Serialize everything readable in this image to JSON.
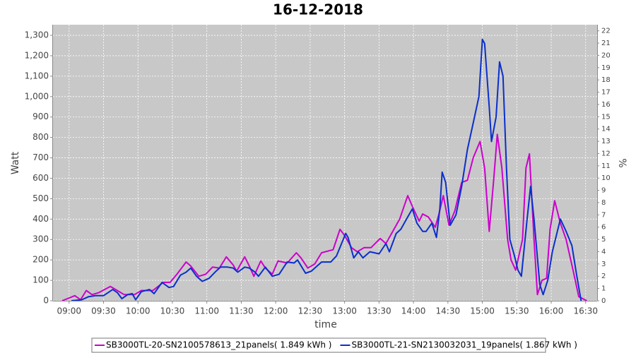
{
  "chart_data": {
    "type": "line",
    "title": "16-12-2018",
    "x_label": "time",
    "y_label": "Watt",
    "y2_label": "%",
    "xlim": [
      "08:46",
      "16:40"
    ],
    "xticks": [
      "09:00",
      "09:30",
      "10:00",
      "10:30",
      "11:00",
      "11:30",
      "12:00",
      "12:30",
      "13:00",
      "13:30",
      "14:00",
      "14:30",
      "15:00",
      "15:30",
      "16:00",
      "16:30"
    ],
    "ylim": [
      0,
      1352
    ],
    "yticks": [
      0,
      100,
      200,
      300,
      400,
      500,
      600,
      700,
      800,
      900,
      {
        "value": 1000,
        "label": "1,000"
      },
      {
        "value": 1100,
        "label": "1,100"
      },
      {
        "value": 1200,
        "label": "1,200"
      },
      {
        "value": 1300,
        "label": "1,300"
      }
    ],
    "y2lim": [
      0,
      22.5
    ],
    "y2ticks": [
      0,
      1,
      2,
      3,
      4,
      5,
      6,
      7,
      8,
      9,
      10,
      11,
      12,
      13,
      14,
      15,
      16,
      17,
      18,
      19,
      20,
      21,
      22
    ],
    "grid": true,
    "legend": "bottom",
    "series": [
      {
        "name": "SB3000TL-20-SN2100578613_21panels( 1.849 kWh )",
        "color": "#cc00cc",
        "x": [
          "08:54",
          "09:05",
          "09:10",
          "09:15",
          "09:20",
          "09:26",
          "09:36",
          "09:42",
          "09:48",
          "09:57",
          "10:03",
          "10:13",
          "10:22",
          "10:28",
          "10:34",
          "10:42",
          "10:46",
          "10:53",
          "10:59",
          "11:05",
          "11:11",
          "11:17",
          "11:23",
          "11:26",
          "11:33",
          "11:37",
          "11:41",
          "11:47",
          "11:51",
          "11:57",
          "12:02",
          "12:10",
          "12:18",
          "12:22",
          "12:28",
          "12:34",
          "12:40",
          "12:50",
          "12:56",
          "13:00",
          "13:06",
          "13:11",
          "13:17",
          "13:23",
          "13:31",
          "13:36",
          "13:42",
          "13:48",
          "13:55",
          "14:00",
          "14:05",
          "14:08",
          "14:13",
          "14:19",
          "14:22",
          "14:26",
          "14:31",
          "14:36",
          "14:42",
          "14:47",
          "14:52",
          "14:58",
          "15:02",
          "15:06",
          "15:10",
          "15:13",
          "15:17",
          "15:22",
          "15:25",
          "15:29",
          "15:35",
          "15:38",
          "15:41",
          "15:45",
          "15:48",
          "15:52",
          "15:56",
          "15:59",
          "16:03",
          "16:08",
          "16:13",
          "16:19",
          "16:24",
          "16:31"
        ],
        "values": [
          0,
          25,
          5,
          50,
          30,
          40,
          70,
          50,
          30,
          30,
          50,
          50,
          90,
          90,
          130,
          190,
          170,
          120,
          130,
          165,
          160,
          215,
          175,
          145,
          215,
          170,
          120,
          195,
          160,
          130,
          195,
          185,
          235,
          210,
          160,
          180,
          235,
          250,
          350,
          320,
          260,
          240,
          260,
          260,
          305,
          280,
          340,
          400,
          515,
          450,
          390,
          425,
          410,
          360,
          420,
          515,
          370,
          440,
          580,
          590,
          700,
          780,
          650,
          340,
          600,
          815,
          650,
          300,
          200,
          150,
          300,
          650,
          720,
          300,
          30,
          100,
          110,
          350,
          490,
          380,
          300,
          150,
          20,
          0
        ]
      },
      {
        "name": "SB3000TL-21-SN2130032031_19panels( 1.867 kWh )",
        "color": "#0a2fcc",
        "x": [
          "09:02",
          "09:11",
          "09:17",
          "09:23",
          "09:30",
          "09:38",
          "09:42",
          "09:46",
          "09:51",
          "09:55",
          "09:58",
          "10:03",
          "10:10",
          "10:14",
          "10:21",
          "10:27",
          "10:31",
          "10:37",
          "10:42",
          "10:46",
          "10:51",
          "10:56",
          "11:02",
          "11:08",
          "11:12",
          "11:18",
          "11:23",
          "11:27",
          "11:33",
          "11:37",
          "11:42",
          "11:45",
          "11:51",
          "11:57",
          "12:03",
          "12:10",
          "12:16",
          "12:19",
          "12:26",
          "12:31",
          "12:40",
          "12:48",
          "12:53",
          "13:01",
          "13:03",
          "13:08",
          "13:12",
          "13:16",
          "13:22",
          "13:30",
          "13:36",
          "13:39",
          "13:45",
          "13:49",
          "13:54",
          "13:59",
          "14:03",
          "14:08",
          "14:11",
          "14:16",
          "14:20",
          "14:23",
          "14:25",
          "14:28",
          "14:32",
          "14:37",
          "14:42",
          "14:47",
          "14:52",
          "14:57",
          "15:00",
          "15:02",
          "15:06",
          "15:08",
          "15:12",
          "15:15",
          "15:18",
          "15:21",
          "15:24",
          "15:28",
          "15:31",
          "15:34",
          "15:39",
          "15:42",
          "15:45",
          "15:50",
          "15:53",
          "15:57",
          "16:01",
          "16:08",
          "16:13",
          "16:18",
          "16:22",
          "16:26"
        ],
        "values": [
          0,
          5,
          20,
          25,
          25,
          55,
          40,
          10,
          30,
          35,
          5,
          45,
          55,
          35,
          90,
          65,
          70,
          125,
          140,
          160,
          120,
          95,
          110,
          145,
          165,
          165,
          160,
          140,
          165,
          160,
          140,
          120,
          165,
          120,
          130,
          190,
          185,
          200,
          135,
          145,
          190,
          190,
          220,
          330,
          310,
          210,
          240,
          210,
          240,
          230,
          280,
          240,
          330,
          350,
          400,
          450,
          380,
          340,
          340,
          380,
          310,
          450,
          630,
          580,
          370,
          420,
          560,
          740,
          870,
          1000,
          1280,
          1260,
          950,
          780,
          900,
          1170,
          1100,
          650,
          300,
          220,
          150,
          120,
          400,
          560,
          400,
          80,
          30,
          100,
          240,
          400,
          340,
          270,
          130,
          0
        ]
      }
    ]
  }
}
